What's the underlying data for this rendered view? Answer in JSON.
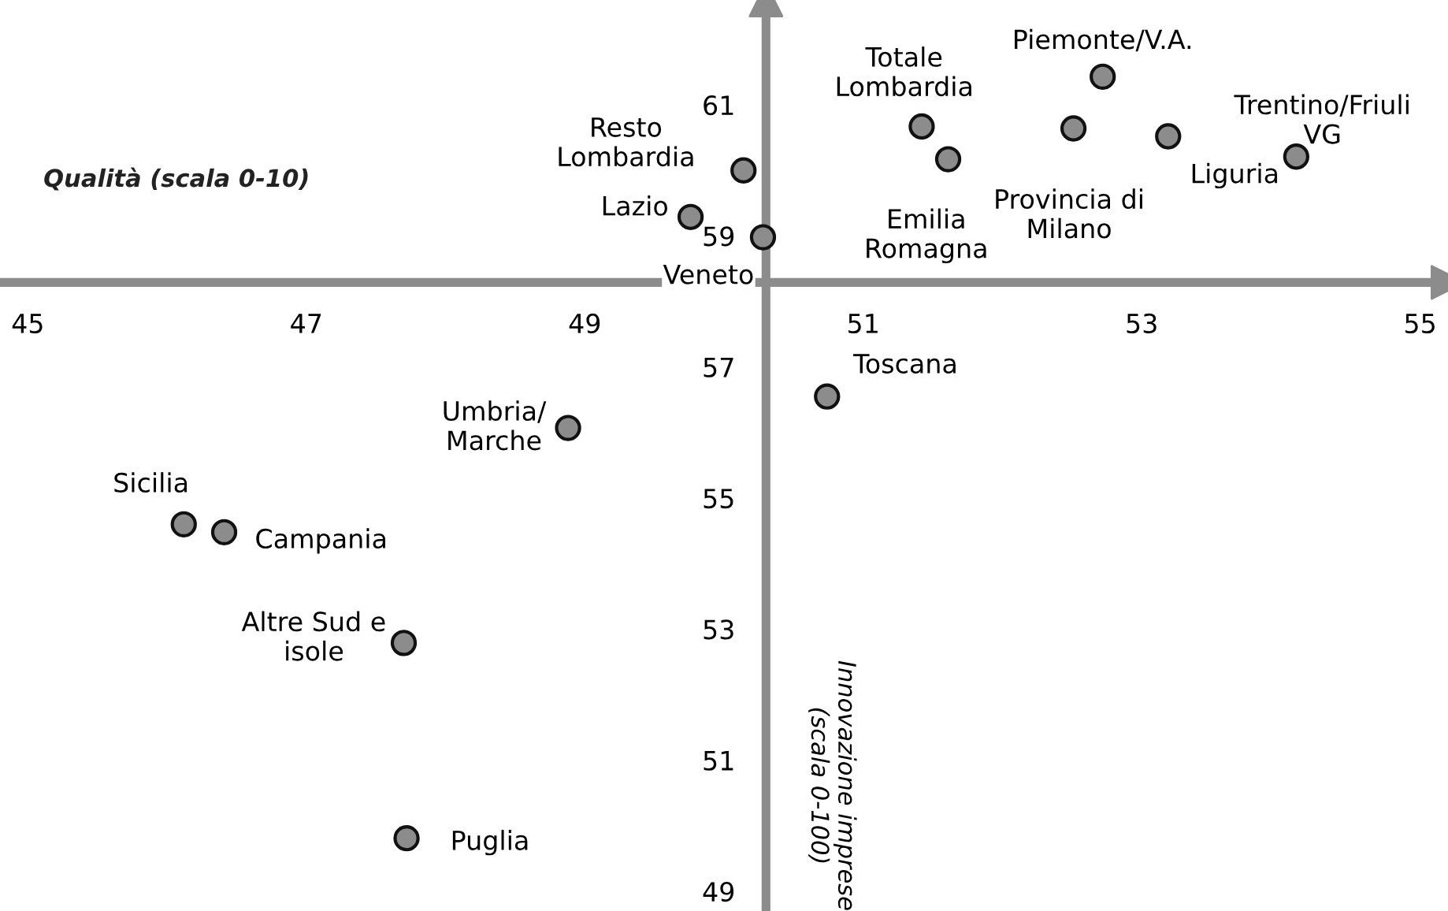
{
  "chart_data": {
    "type": "scatter",
    "xlabel": "Qualità (scala 0-10)",
    "ylabel": "Innovazione imprese\n(scala 0-100)",
    "xlim": [
      44.8,
      55.2
    ],
    "ylim": [
      48.7,
      62.6
    ],
    "xticks": [
      45,
      47,
      49,
      51,
      53,
      55
    ],
    "yticks": [
      49,
      51,
      53,
      55,
      57,
      59,
      61
    ],
    "grid": false,
    "legend": false,
    "marker": "circle",
    "series": [
      {
        "color": "#8c8c8c",
        "x": [
          50.14,
          49.76,
          50.28,
          51.42,
          51.61,
          52.72,
          52.51,
          53.19,
          54.11,
          50.74,
          48.88,
          46.12,
          46.41,
          47.7,
          47.72
        ],
        "values": [
          60.0,
          59.29,
          58.98,
          60.67,
          60.17,
          61.43,
          60.64,
          60.52,
          60.21,
          56.55,
          56.07,
          54.6,
          54.48,
          52.79,
          49.81
        ]
      }
    ],
    "annotations": [
      {
        "text": "Resto\nLombardia",
        "x": 50.14,
        "y": 60.0
      },
      {
        "text": "Lazio",
        "x": 49.76,
        "y": 59.29
      },
      {
        "text": "Veneto",
        "x": 50.28,
        "y": 58.98
      },
      {
        "text": "Totale\nLombardia",
        "x": 51.42,
        "y": 60.67
      },
      {
        "text": "Emilia\nRomagna",
        "x": 51.61,
        "y": 60.17
      },
      {
        "text": "Piemonte/V.A.",
        "x": 52.72,
        "y": 61.43
      },
      {
        "text": "Provincia di\nMilano",
        "x": 52.51,
        "y": 60.64
      },
      {
        "text": "Liguria",
        "x": 53.19,
        "y": 60.52
      },
      {
        "text": "Trentino/Friuli\nVG",
        "x": 54.11,
        "y": 60.21
      },
      {
        "text": "Toscana",
        "x": 50.74,
        "y": 56.55
      },
      {
        "text": "Umbria/\nMarche",
        "x": 48.88,
        "y": 56.07
      },
      {
        "text": "Sicilia",
        "x": 46.12,
        "y": 54.6
      },
      {
        "text": "Campania",
        "x": 46.41,
        "y": 54.48
      },
      {
        "text": "Altre Sud e\nisole",
        "x": 47.7,
        "y": 52.79
      },
      {
        "text": "Puglia",
        "x": 47.72,
        "y": 49.81
      }
    ]
  }
}
